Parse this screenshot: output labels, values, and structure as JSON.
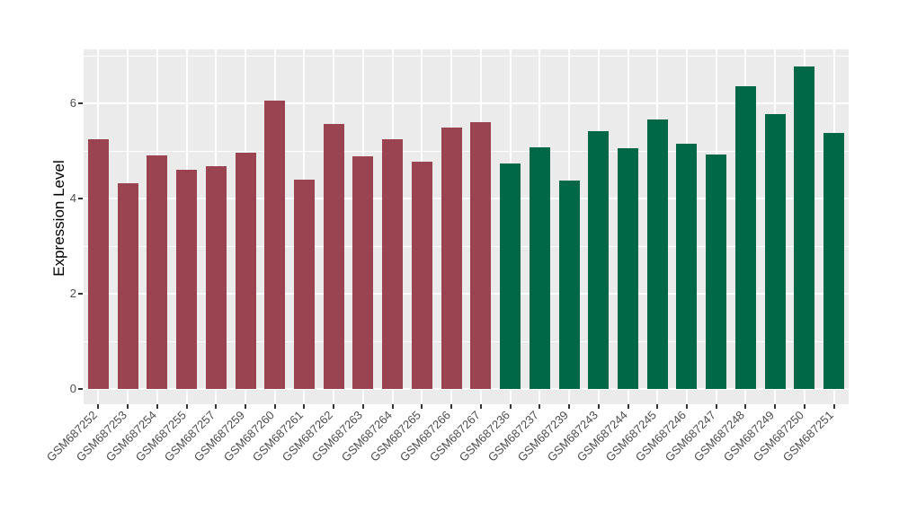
{
  "chart_data": {
    "type": "bar",
    "title": "",
    "xlabel": "",
    "ylabel": "Expression Level",
    "ylim": [
      0,
      7.13
    ],
    "yticks": [
      0,
      2,
      4,
      6
    ],
    "yminor": [
      1,
      3,
      5,
      7
    ],
    "grid": "on",
    "legend": "none",
    "panel_bg": "#EBEBEB",
    "grid_color": "#FFFFFF",
    "axis_text_color": "#4D4D4D",
    "axis_title_color": "#000000",
    "bar_colors": {
      "left_group": "#9A4451",
      "right_group": "#006747"
    },
    "categories": [
      "GSM687252",
      "GSM687253",
      "GSM687254",
      "GSM687255",
      "GSM687257",
      "GSM687259",
      "GSM687260",
      "GSM687261",
      "GSM687262",
      "GSM687263",
      "GSM687264",
      "GSM687265",
      "GSM687266",
      "GSM687267",
      "GSM687236",
      "GSM687237",
      "GSM687239",
      "GSM687243",
      "GSM687244",
      "GSM687245",
      "GSM687246",
      "GSM687247",
      "GSM687248",
      "GSM687249",
      "GSM687250",
      "GSM687251"
    ],
    "values": [
      5.25,
      4.33,
      4.91,
      4.6,
      4.67,
      4.97,
      6.06,
      4.4,
      5.57,
      4.89,
      5.25,
      4.77,
      5.49,
      5.61,
      4.73,
      5.08,
      4.38,
      5.42,
      5.05,
      5.66,
      5.15,
      4.93,
      6.35,
      5.78,
      6.78,
      5.37
    ],
    "groups": [
      "left_group",
      "left_group",
      "left_group",
      "left_group",
      "left_group",
      "left_group",
      "left_group",
      "left_group",
      "left_group",
      "left_group",
      "left_group",
      "left_group",
      "left_group",
      "left_group",
      "right_group",
      "right_group",
      "right_group",
      "right_group",
      "right_group",
      "right_group",
      "right_group",
      "right_group",
      "right_group",
      "right_group",
      "right_group",
      "right_group"
    ]
  }
}
